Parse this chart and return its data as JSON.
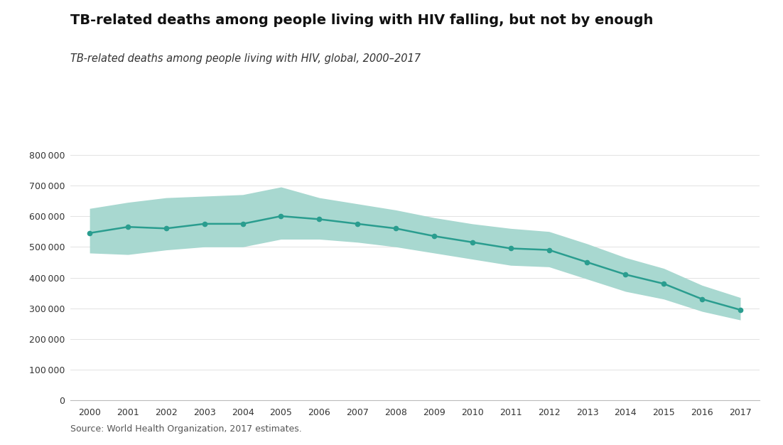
{
  "title": "TB-related deaths among people living with HIV falling, but not by enough",
  "subtitle": "TB-related deaths among people living with HIV, global, 2000–2017",
  "source": "Source: World Health Organization, 2017 estimates.",
  "years": [
    2000,
    2001,
    2002,
    2003,
    2004,
    2005,
    2006,
    2007,
    2008,
    2009,
    2010,
    2011,
    2012,
    2013,
    2014,
    2015,
    2016,
    2017
  ],
  "central": [
    545000,
    565000,
    560000,
    575000,
    575000,
    600000,
    590000,
    575000,
    560000,
    535000,
    515000,
    495000,
    490000,
    450000,
    410000,
    380000,
    330000,
    295000
  ],
  "upper": [
    625000,
    645000,
    660000,
    665000,
    670000,
    695000,
    660000,
    640000,
    620000,
    595000,
    575000,
    560000,
    550000,
    510000,
    465000,
    430000,
    375000,
    335000
  ],
  "lower": [
    480000,
    475000,
    490000,
    500000,
    500000,
    525000,
    525000,
    515000,
    500000,
    480000,
    460000,
    440000,
    435000,
    395000,
    355000,
    330000,
    290000,
    262000
  ],
  "line_color": "#2a9d8f",
  "fill_color": "#a8d8d0",
  "background_color": "#ffffff",
  "ylim": [
    0,
    840000
  ],
  "yticks": [
    0,
    100000,
    200000,
    300000,
    400000,
    500000,
    600000,
    700000,
    800000
  ],
  "title_fontsize": 14,
  "subtitle_fontsize": 10.5,
  "source_fontsize": 9,
  "tick_fontsize": 9
}
